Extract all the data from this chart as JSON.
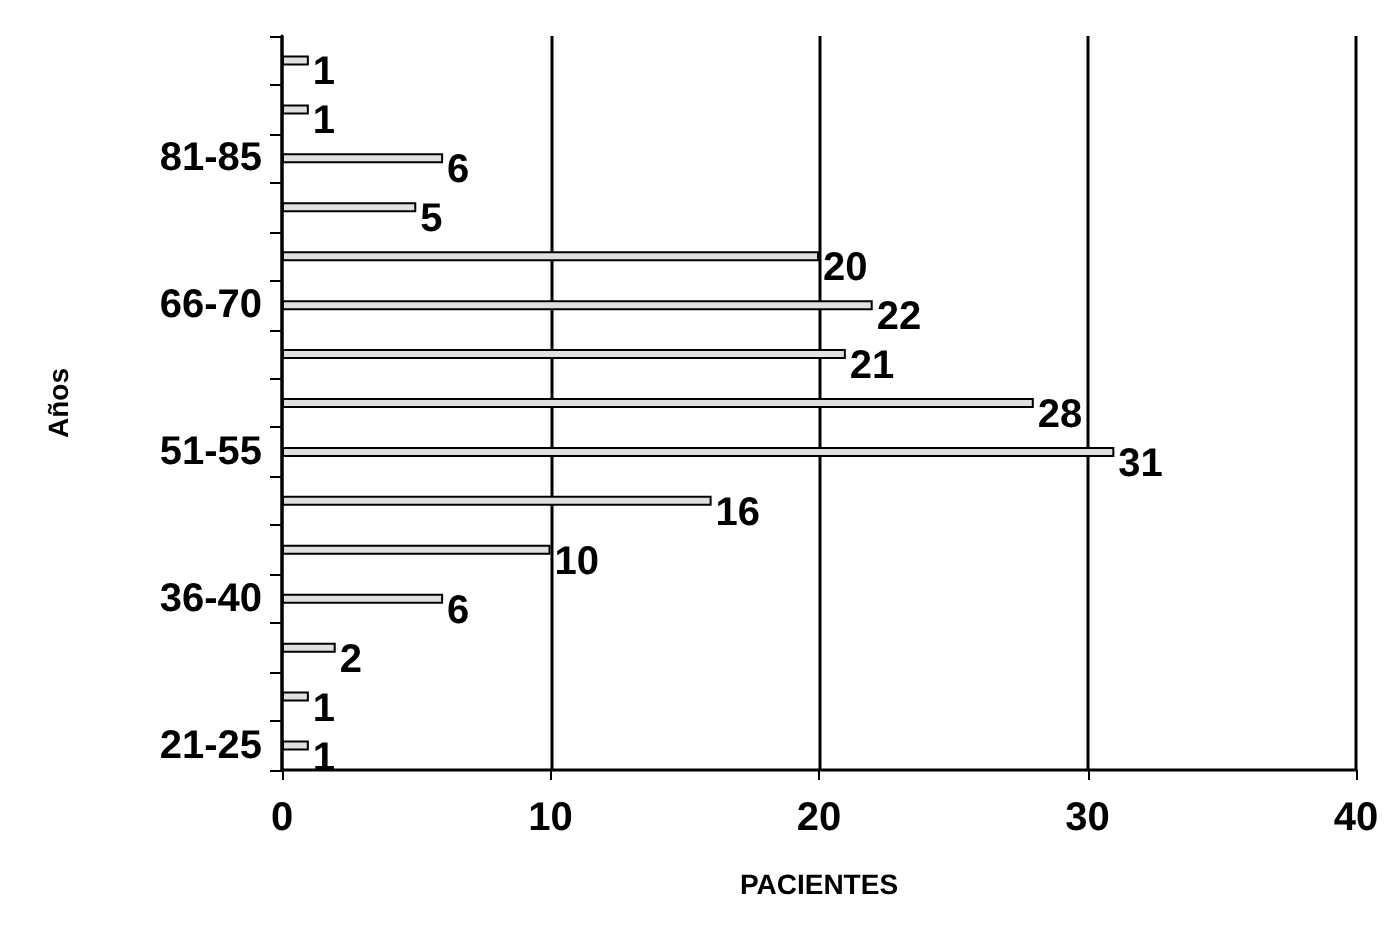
{
  "chart_data": {
    "type": "bar",
    "orientation": "horizontal",
    "xlabel": "PACIENTES",
    "ylabel": "Años",
    "categories": [
      null,
      null,
      "81-85",
      null,
      null,
      "66-70",
      null,
      null,
      "51-55",
      null,
      null,
      "36-40",
      null,
      null,
      "21-25"
    ],
    "values": [
      1,
      1,
      6,
      5,
      20,
      22,
      21,
      28,
      31,
      16,
      10,
      6,
      2,
      1,
      1
    ],
    "color": "#e0e0e0",
    "xlim": [
      0,
      40
    ],
    "xticks": [
      0,
      10,
      20,
      30,
      40
    ],
    "grid": "x",
    "data_labels": true
  }
}
